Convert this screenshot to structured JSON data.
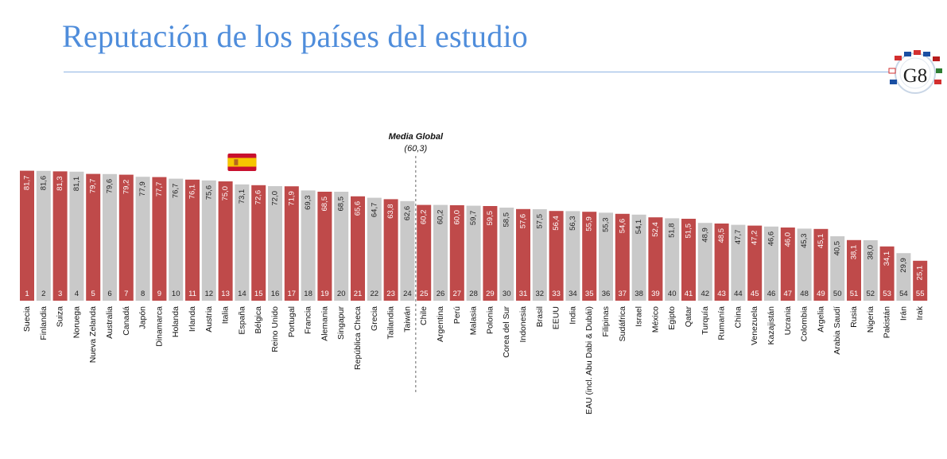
{
  "page": {
    "title": "Reputación de los países del estudio",
    "logo_text": "G8"
  },
  "colors": {
    "highlight": "#bf4a4a",
    "normal": "#c9c9c9",
    "title": "#4f8ddb",
    "reference": "#8a8a8a"
  },
  "chart_data": {
    "type": "bar",
    "categories": [
      "Suecia",
      "Finlandia",
      "Suiza",
      "Noruega",
      "Nueva Zelanda",
      "Australia",
      "Canadá",
      "Japón",
      "Dinamarca",
      "Holanda",
      "Irlanda",
      "Austria",
      "Italia",
      "España",
      "Bélgica",
      "Reino Unido",
      "Portugal",
      "Francia",
      "Alemania",
      "Singapur",
      "República Checa",
      "Grecia",
      "Tailandia",
      "Taiwán",
      "Chile",
      "Argentina",
      "Perú",
      "Malasia",
      "Polonia",
      "Corea del Sur",
      "Indonesia",
      "Brasil",
      "EEUU",
      "India",
      "EAU (incl. Abu Dabi & Dubái)",
      "Filipinas",
      "Sudáfrica",
      "Israel",
      "México",
      "Egipto",
      "Qatar",
      "Turquía",
      "Rumanía",
      "China",
      "Venezuela",
      "Kazajistán",
      "Ucrania",
      "Colombia",
      "Argelia",
      "Arabia Saudí",
      "Rusia",
      "Nigeria",
      "Pakistán",
      "Irán",
      "Irak"
    ],
    "values": [
      81.7,
      81.6,
      81.3,
      81.1,
      79.7,
      79.6,
      79.2,
      77.9,
      77.7,
      76.7,
      76.1,
      75.6,
      75.0,
      73.1,
      72.6,
      72.0,
      71.9,
      69.3,
      68.5,
      68.5,
      65.6,
      64.7,
      63.8,
      62.6,
      60.2,
      60.2,
      60.0,
      59.7,
      59.5,
      58.5,
      57.6,
      57.5,
      56.4,
      56.3,
      55.9,
      55.3,
      54.6,
      54.1,
      52.4,
      51.8,
      51.5,
      48.9,
      48.5,
      47.7,
      47.2,
      46.6,
      46.0,
      45.3,
      45.1,
      40.5,
      38.1,
      38.0,
      34.1,
      29.9,
      25.1
    ],
    "value_labels": [
      "81,7",
      "81,6",
      "81,3",
      "81,1",
      "79,7",
      "79,6",
      "79,2",
      "77,9",
      "77,7",
      "76,7",
      "76,1",
      "75,6",
      "75,0",
      "73,1",
      "72,6",
      "72,0",
      "71,9",
      "69,3",
      "68,5",
      "68,5",
      "65,6",
      "64,7",
      "63,8",
      "62,6",
      "60,2",
      "60,2",
      "60,0",
      "59,7",
      "59,5",
      "58,5",
      "57,6",
      "57,5",
      "56,4",
      "56,3",
      "55,9",
      "55,3",
      "54,6",
      "54,1",
      "52,4",
      "51,8",
      "51,5",
      "48,9",
      "48,5",
      "47,7",
      "47,2",
      "46,6",
      "46,0",
      "45,3",
      "45,1",
      "40,5",
      "38,1",
      "38,0",
      "34,1",
      "29,9",
      "25,1"
    ],
    "ranks": [
      "1",
      "2",
      "3",
      "4",
      "5",
      "6",
      "7",
      "8",
      "9",
      "10",
      "11",
      "12",
      "13",
      "14",
      "15",
      "16",
      "17",
      "18",
      "19",
      "20",
      "21",
      "22",
      "23",
      "24",
      "25",
      "26",
      "27",
      "28",
      "29",
      "30",
      "31",
      "32",
      "33",
      "34",
      "35",
      "36",
      "37",
      "38",
      "39",
      "40",
      "41",
      "42",
      "43",
      "44",
      "45",
      "46",
      "47",
      "48",
      "49",
      "50",
      "51",
      "52",
      "53",
      "54",
      "55"
    ],
    "highlighted": [
      true,
      false,
      true,
      false,
      true,
      false,
      true,
      false,
      true,
      false,
      true,
      false,
      true,
      false,
      true,
      false,
      true,
      false,
      true,
      false,
      true,
      false,
      true,
      false,
      true,
      false,
      true,
      false,
      true,
      false,
      true,
      false,
      true,
      false,
      true,
      false,
      true,
      false,
      true,
      false,
      true,
      false,
      true,
      false,
      true,
      false,
      true,
      false,
      true,
      false,
      true,
      false,
      true,
      false,
      true
    ],
    "reference_line": {
      "label": "Media Global",
      "value_label": "(60,3)",
      "value": 60.3,
      "after_category": "Taiwán"
    },
    "flag_category": "España",
    "ylim": [
      0,
      100
    ]
  }
}
